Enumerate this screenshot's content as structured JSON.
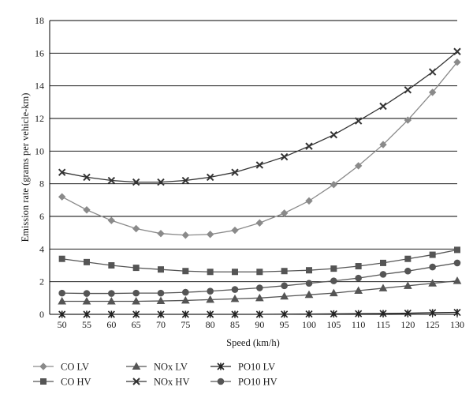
{
  "chart_data": {
    "type": "line",
    "xlabel": "Speed (km/h)",
    "ylabel": "Emission rate (grams per vehicle-km)",
    "x": [
      50,
      55,
      60,
      65,
      70,
      75,
      80,
      85,
      90,
      95,
      100,
      105,
      110,
      115,
      120,
      125,
      130
    ],
    "xlim": [
      50,
      130
    ],
    "ylim": [
      0,
      18
    ],
    "yticks": [
      0,
      2,
      4,
      6,
      8,
      10,
      12,
      14,
      16,
      18
    ],
    "grid": {
      "horizontal": true,
      "vertical": false
    },
    "legend_position": "bottom",
    "series": [
      {
        "name": "CO LV",
        "marker": "diamond",
        "color": "#8a8a8a",
        "values": [
          7.2,
          6.4,
          5.75,
          5.25,
          4.95,
          4.85,
          4.9,
          5.15,
          5.6,
          6.2,
          6.95,
          7.95,
          9.1,
          10.4,
          11.9,
          13.6,
          15.45
        ]
      },
      {
        "name": "CO HV",
        "marker": "square",
        "color": "#555555",
        "values": [
          3.4,
          3.2,
          3.0,
          2.85,
          2.75,
          2.65,
          2.6,
          2.6,
          2.6,
          2.65,
          2.7,
          2.8,
          2.95,
          3.15,
          3.4,
          3.65,
          3.95
        ]
      },
      {
        "name": "NOx LV",
        "marker": "triangle",
        "color": "#555555",
        "values": [
          0.8,
          0.8,
          0.8,
          0.8,
          0.82,
          0.85,
          0.9,
          0.95,
          1.0,
          1.1,
          1.2,
          1.3,
          1.45,
          1.6,
          1.75,
          1.9,
          2.05
        ]
      },
      {
        "name": "NOx HV",
        "marker": "x",
        "color": "#333333",
        "values": [
          8.7,
          8.4,
          8.2,
          8.1,
          8.1,
          8.2,
          8.4,
          8.7,
          9.15,
          9.65,
          10.3,
          11.0,
          11.85,
          12.75,
          13.75,
          14.85,
          16.1
        ]
      },
      {
        "name": "PO10 LV",
        "marker": "asterisk",
        "color": "#222222",
        "values": [
          0.0,
          0.0,
          0.0,
          0.0,
          0.0,
          0.0,
          0.0,
          0.0,
          0.0,
          0.01,
          0.02,
          0.03,
          0.04,
          0.05,
          0.07,
          0.1,
          0.12
        ]
      },
      {
        "name": "PO10 HV",
        "marker": "circle",
        "color": "#555555",
        "values": [
          1.3,
          1.28,
          1.28,
          1.3,
          1.3,
          1.35,
          1.42,
          1.52,
          1.62,
          1.75,
          1.9,
          2.05,
          2.22,
          2.45,
          2.65,
          2.9,
          3.15
        ]
      }
    ],
    "legend_layout": [
      [
        "CO LV",
        "NOx LV",
        "PO10 LV"
      ],
      [
        "CO HV",
        "NOx HV",
        "PO10 HV"
      ]
    ]
  }
}
